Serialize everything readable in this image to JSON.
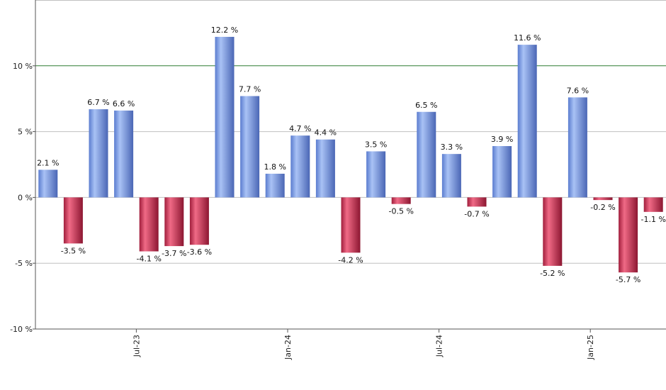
{
  "chart_data": {
    "type": "bar",
    "title": "",
    "xlabel": "",
    "ylabel": "",
    "ylim": [
      -10,
      15
    ],
    "y_ticks": [
      {
        "value": -10,
        "label": "-10 %"
      },
      {
        "value": -5,
        "label": "-5 %"
      },
      {
        "value": 0,
        "label": "0 %"
      },
      {
        "value": 5,
        "label": "5 %"
      },
      {
        "value": 10,
        "label": "10 %"
      }
    ],
    "x_ticks": [
      {
        "label": "Jul-23",
        "position": 3.5
      },
      {
        "label": "Jan-24",
        "position": 9.5
      },
      {
        "label": "Jul-24",
        "position": 15.5
      },
      {
        "label": "Jan-25",
        "position": 21.5
      }
    ],
    "reference_line": {
      "value": 10,
      "color": "#2e7d32"
    },
    "grid": true,
    "colors": {
      "positive": "#7d9ee6",
      "negative": "#c8294c",
      "grid": "#c0c0c0",
      "axis": "#555555"
    },
    "values": [
      2.1,
      -3.5,
      6.7,
      6.6,
      -4.1,
      -3.7,
      -3.6,
      12.2,
      7.7,
      1.8,
      4.7,
      4.4,
      -4.2,
      3.5,
      -0.5,
      6.5,
      3.3,
      -0.7,
      3.9,
      11.6,
      -5.2,
      7.6,
      -0.2,
      -5.7,
      -1.1
    ],
    "labels": [
      "2.1 %",
      "-3.5 %",
      "6.7 %",
      "6.6 %",
      "-4.1 %",
      "-3.7 %",
      "-3.6 %",
      "12.2 %",
      "7.7 %",
      "1.8 %",
      "4.7 %",
      "4.4 %",
      "-4.2 %",
      "3.5 %",
      "-0.5 %",
      "6.5 %",
      "3.3 %",
      "-0.7 %",
      "3.9 %",
      "11.6 %",
      "-5.2 %",
      "7.6 %",
      "-0.2 %",
      "-5.7 %",
      "-1.1 %"
    ]
  }
}
